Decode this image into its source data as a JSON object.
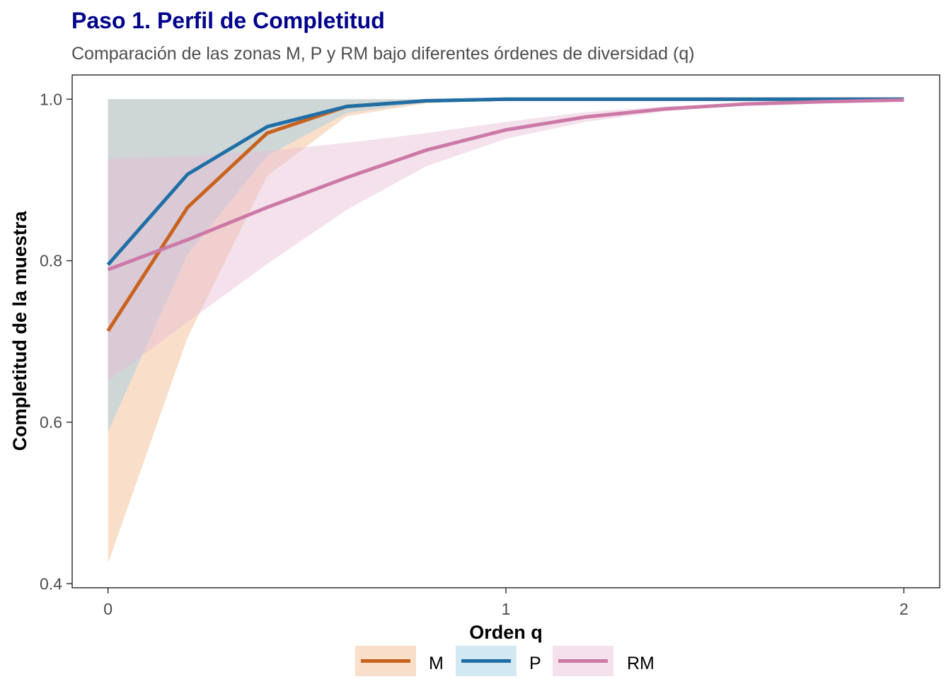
{
  "chart_data": {
    "type": "line",
    "title": "Paso 1. Perfil de Completitud",
    "subtitle": "Comparación de las zonas M, P y RM bajo diferentes órdenes de diversidad (q)",
    "xlabel": "Orden q",
    "ylabel": "Completitud de la muestra",
    "xlim": [
      -0.09,
      2.09
    ],
    "ylim": [
      0.395,
      1.03
    ],
    "x_ticks": [
      0,
      1,
      2
    ],
    "y_ticks": [
      0.4,
      0.6,
      0.8,
      1.0
    ],
    "x_tick_labels": [
      "0",
      "1",
      "2"
    ],
    "y_tick_labels": [
      "0.4",
      "0.6",
      "0.8",
      "1.0"
    ],
    "grid": false,
    "legend_position": "bottom",
    "x": [
      0,
      0.2,
      0.4,
      0.6,
      0.8,
      1.0,
      1.2,
      1.4,
      1.6,
      1.8,
      2.0
    ],
    "series": [
      {
        "name": "M",
        "line_color": "#c8621e",
        "fill_color": "#f2b98a",
        "values": [
          0.713,
          0.866,
          0.958,
          0.991,
          0.998,
          1.0,
          1.0,
          1.0,
          1.0,
          1.0,
          1.0
        ],
        "lower": [
          0.425,
          0.705,
          0.905,
          0.979,
          0.995,
          0.999,
          1.0,
          1.0,
          1.0,
          1.0,
          1.0
        ],
        "upper": [
          1.0,
          1.0,
          1.0,
          1.0,
          1.0,
          1.0,
          1.0,
          1.0,
          1.0,
          1.0,
          1.0
        ]
      },
      {
        "name": "P",
        "line_color": "#1f6fa6",
        "fill_color": "#9ccbe5",
        "values": [
          0.795,
          0.907,
          0.966,
          0.991,
          0.998,
          1.0,
          1.0,
          1.0,
          1.0,
          1.0,
          1.0
        ],
        "lower": [
          0.588,
          0.808,
          0.93,
          0.983,
          0.996,
          0.999,
          1.0,
          1.0,
          1.0,
          1.0,
          1.0
        ],
        "upper": [
          1.0,
          1.0,
          1.0,
          1.0,
          1.0,
          1.0,
          1.0,
          1.0,
          1.0,
          1.0,
          1.0
        ]
      },
      {
        "name": "RM",
        "line_color": "#cc79a7",
        "fill_color": "#e6bcd5",
        "values": [
          0.789,
          0.826,
          0.866,
          0.903,
          0.937,
          0.962,
          0.978,
          0.988,
          0.994,
          0.997,
          0.999
        ],
        "lower": [
          0.651,
          0.724,
          0.796,
          0.863,
          0.917,
          0.951,
          0.972,
          0.985,
          0.993,
          0.996,
          0.998
        ],
        "upper": [
          0.927,
          0.929,
          0.936,
          0.946,
          0.958,
          0.972,
          0.984,
          0.991,
          0.995,
          0.998,
          0.999
        ]
      }
    ]
  }
}
